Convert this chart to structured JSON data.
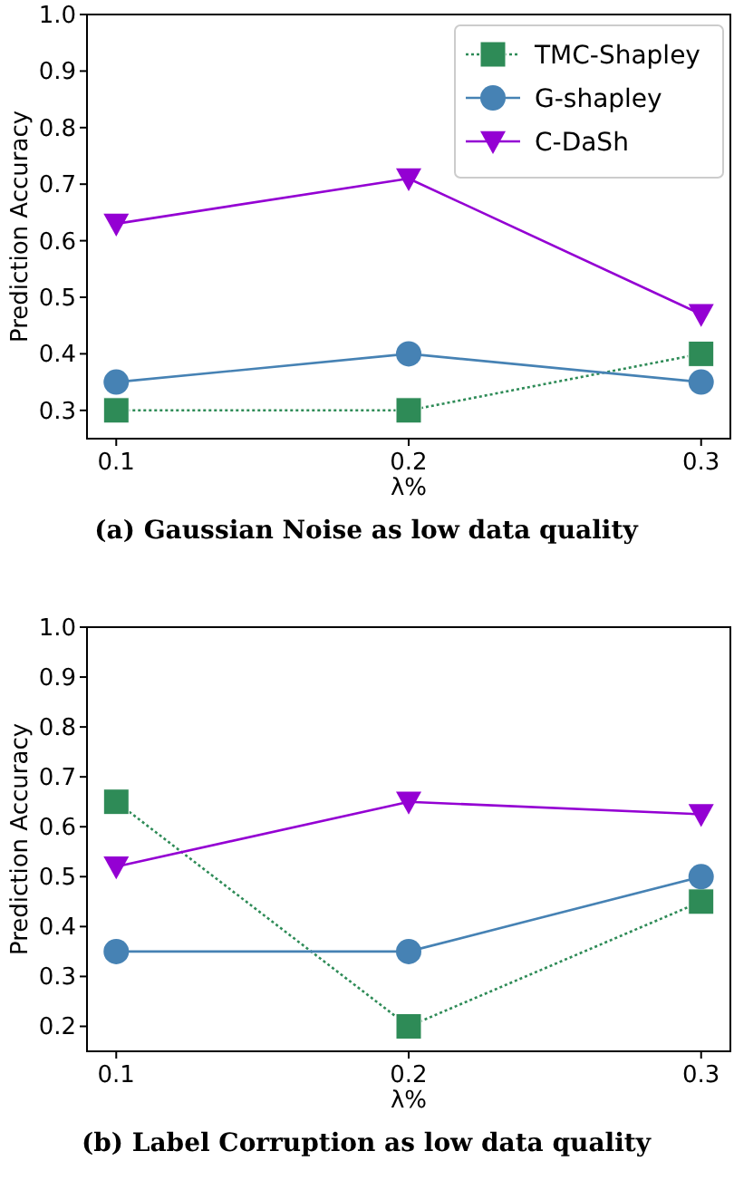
{
  "chart_data": [
    {
      "type": "line",
      "title": "(a) Gaussian Noise as low data quality",
      "xlabel": "λ%",
      "ylabel": "Prediction Accuracy",
      "x": [
        0.1,
        0.2,
        0.3
      ],
      "xlim": [
        0.09,
        0.31
      ],
      "xticks": [
        0.1,
        0.2,
        0.3
      ],
      "ylim": [
        0.25,
        1.0
      ],
      "yticks": [
        {
          "value": 0.3,
          "label": "0.3"
        },
        {
          "value": 0.4,
          "label": "0.4"
        },
        {
          "value": 0.5,
          "label": "0.5"
        },
        {
          "value": 0.6,
          "label": "0.6"
        },
        {
          "value": 0.7,
          "label": "0.7"
        },
        {
          "value": 0.8,
          "label": "0.8"
        },
        {
          "value": 0.9,
          "label": "0.9"
        },
        {
          "value": 1.0,
          "label": "1.0"
        }
      ],
      "legend": "top right",
      "grid": false,
      "series": [
        {
          "name": "TMC-Shapley",
          "color": "#2e8b57",
          "marker": "square",
          "line_style": "dotted",
          "values": [
            0.3,
            0.3,
            0.4
          ]
        },
        {
          "name": "G-shapley",
          "color": "#4682b4",
          "marker": "circle",
          "line_style": "solid",
          "values": [
            0.35,
            0.4,
            0.35
          ]
        },
        {
          "name": "C-DaSh",
          "color": "#9400d3",
          "marker": "triangle",
          "line_style": "solid",
          "values": [
            0.63,
            0.71,
            0.47
          ]
        }
      ]
    },
    {
      "type": "line",
      "title": "(b) Label Corruption as low data quality",
      "xlabel": "λ%",
      "ylabel": "Prediction Accuracy",
      "x": [
        0.1,
        0.2,
        0.3
      ],
      "xlim": [
        0.09,
        0.31
      ],
      "xticks": [
        0.1,
        0.2,
        0.3
      ],
      "ylim": [
        0.15,
        1.0
      ],
      "yticks": [
        {
          "value": 0.2,
          "label": "0.2"
        },
        {
          "value": 0.3,
          "label": "0.3"
        },
        {
          "value": 0.4,
          "label": "0.4"
        },
        {
          "value": 0.5,
          "label": "0.5"
        },
        {
          "value": 0.6,
          "label": "0.6"
        },
        {
          "value": 0.7,
          "label": "0.7"
        },
        {
          "value": 0.8,
          "label": "0.8"
        },
        {
          "value": 0.9,
          "label": "0.9"
        },
        {
          "value": 1.0,
          "label": "1.0"
        }
      ],
      "legend": false,
      "grid": false,
      "series": [
        {
          "color": "#2e8b57",
          "marker": "square",
          "line_style": "dotted",
          "values": [
            0.65,
            0.2,
            0.45
          ]
        },
        {
          "color": "#4682b4",
          "marker": "circle",
          "line_style": "solid",
          "values": [
            0.35,
            0.35,
            0.5
          ]
        },
        {
          "color": "#9400d3",
          "marker": "triangle",
          "line_style": "solid",
          "values": [
            0.52,
            0.65,
            0.625
          ]
        }
      ]
    }
  ]
}
